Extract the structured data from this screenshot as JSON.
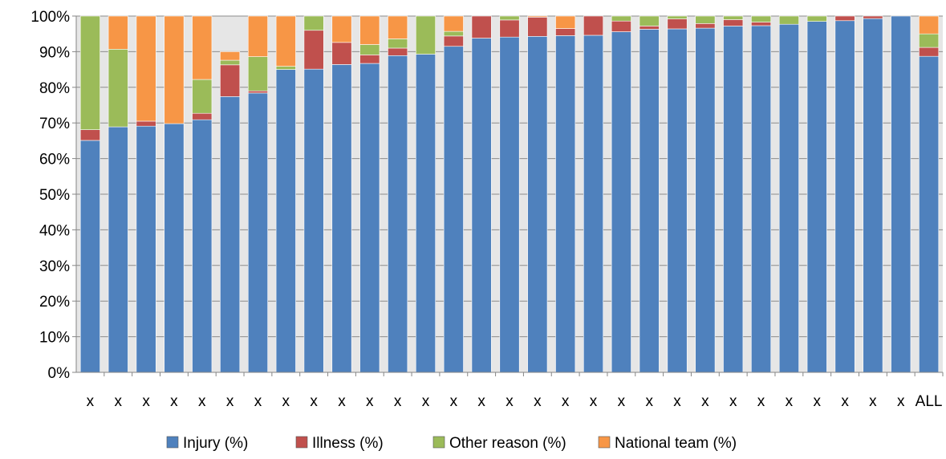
{
  "chart_data": {
    "type": "bar",
    "stacked": true,
    "percent_stacked": true,
    "title": "",
    "xlabel": "",
    "ylabel": "",
    "ylim": [
      0,
      100
    ],
    "y_ticks": [
      "0%",
      "10%",
      "20%",
      "30%",
      "40%",
      "50%",
      "60%",
      "70%",
      "80%",
      "90%",
      "100%"
    ],
    "categories": [
      "x",
      "x",
      "x",
      "x",
      "x",
      "x",
      "x",
      "x",
      "x",
      "x",
      "x",
      "x",
      "x",
      "x",
      "x",
      "x",
      "x",
      "x",
      "x",
      "x",
      "x",
      "x",
      "x",
      "x",
      "x",
      "x",
      "x",
      "x",
      "x",
      "x",
      "ALL"
    ],
    "series": [
      {
        "name": "Injury (%)",
        "color": "#4f81bd",
        "values": [
          65.1,
          68.9,
          69.1,
          69.8,
          70.9,
          77.4,
          78.4,
          85.0,
          85.1,
          86.4,
          86.7,
          88.9,
          89.3,
          91.5,
          93.8,
          94.1,
          94.3,
          94.5,
          94.6,
          95.6,
          96.3,
          96.4,
          96.6,
          97.2,
          97.3,
          97.7,
          98.5,
          98.7,
          99.3,
          100.0,
          88.7
        ]
      },
      {
        "name": "Illness (%)",
        "color": "#c0504d",
        "values": [
          3.0,
          0.0,
          1.4,
          0.0,
          1.8,
          8.9,
          0.6,
          0.0,
          10.9,
          6.2,
          2.4,
          2.1,
          0.0,
          2.9,
          6.2,
          4.8,
          5.4,
          2.0,
          5.4,
          3.0,
          0.9,
          2.8,
          1.3,
          1.8,
          1.0,
          0.0,
          0.0,
          1.3,
          0.7,
          0.0,
          2.5
        ]
      },
      {
        "name": "Other reason (%)",
        "color": "#9bbb59",
        "values": [
          31.9,
          21.8,
          0.0,
          0.0,
          9.5,
          1.3,
          9.6,
          0.9,
          4.0,
          0.0,
          2.9,
          2.6,
          10.7,
          1.3,
          0.0,
          1.1,
          0.0,
          0.0,
          0.0,
          1.4,
          2.8,
          0.8,
          2.1,
          1.0,
          1.7,
          2.3,
          1.5,
          0.0,
          0.0,
          0.0,
          3.8
        ]
      },
      {
        "name": "National team (%)",
        "color": "#f79646",
        "values": [
          0.0,
          9.3,
          29.5,
          30.2,
          17.8,
          2.4,
          11.4,
          14.1,
          0.0,
          7.4,
          8.0,
          6.4,
          0.0,
          4.3,
          0.0,
          0.0,
          0.3,
          3.5,
          0.0,
          0.0,
          0.0,
          0.0,
          0.0,
          0.0,
          0.0,
          0.0,
          0.0,
          0.0,
          0.0,
          0.0,
          5.0
        ]
      }
    ],
    "grid": true,
    "legend": "bottom"
  }
}
